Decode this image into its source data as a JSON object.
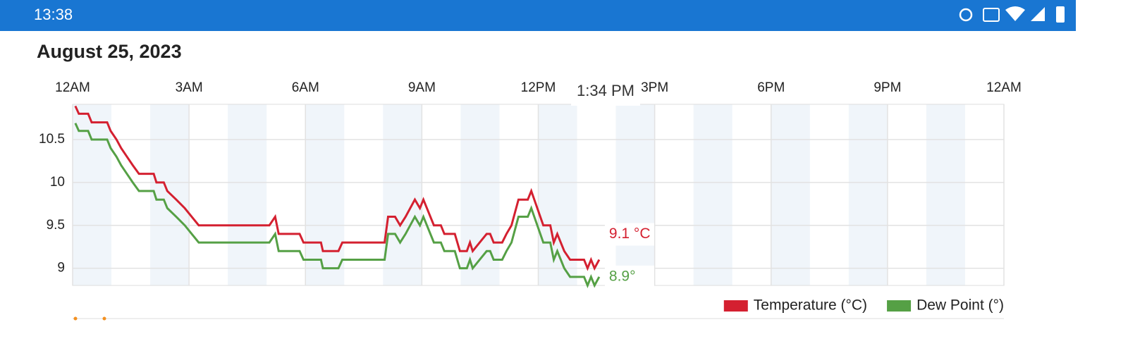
{
  "status_bar": {
    "time": "13:38"
  },
  "chart_data": {
    "type": "line",
    "title": "August 25, 2023",
    "annotation": "1:34 PM",
    "x": [
      0.07,
      0.16,
      0.4,
      0.49,
      0.89,
      0.98,
      1.13,
      1.25,
      1.4,
      1.55,
      1.71,
      2.09,
      2.16,
      2.35,
      2.44,
      2.67,
      2.89,
      3.07,
      3.25,
      5.07,
      5.22,
      5.31,
      5.85,
      5.95,
      6.4,
      6.45,
      6.85,
      6.95,
      8.04,
      8.13,
      8.31,
      8.44,
      8.58,
      8.82,
      8.95,
      9.04,
      9.31,
      9.49,
      9.58,
      9.85,
      9.98,
      10.16,
      10.24,
      10.31,
      10.49,
      10.67,
      10.76,
      10.85,
      11.07,
      11.18,
      11.31,
      11.49,
      11.73,
      11.82,
      12.13,
      12.31,
      12.4,
      12.49,
      12.67,
      12.82,
      13.18,
      13.27,
      13.36,
      13.45,
      13.57
    ],
    "series": [
      {
        "name": "Temperature (°C)",
        "color": "#d42030",
        "last_label": "9.1 °C",
        "values": [
          10.89,
          10.8,
          10.8,
          10.7,
          10.7,
          10.6,
          10.5,
          10.4,
          10.3,
          10.2,
          10.1,
          10.1,
          10.0,
          10.0,
          9.9,
          9.8,
          9.7,
          9.6,
          9.5,
          9.5,
          9.6,
          9.4,
          9.4,
          9.3,
          9.3,
          9.2,
          9.2,
          9.3,
          9.3,
          9.6,
          9.6,
          9.5,
          9.6,
          9.8,
          9.7,
          9.8,
          9.5,
          9.5,
          9.4,
          9.4,
          9.2,
          9.2,
          9.3,
          9.2,
          9.3,
          9.4,
          9.4,
          9.3,
          9.3,
          9.4,
          9.5,
          9.8,
          9.8,
          9.9,
          9.5,
          9.5,
          9.3,
          9.4,
          9.2,
          9.1,
          9.1,
          9.0,
          9.1,
          9.0,
          9.1
        ]
      },
      {
        "name": "Dew Point (°)",
        "color": "#55a045",
        "last_label": "8.9°",
        "values": [
          10.69,
          10.6,
          10.6,
          10.5,
          10.5,
          10.4,
          10.3,
          10.2,
          10.1,
          10.0,
          9.9,
          9.9,
          9.8,
          9.8,
          9.7,
          9.6,
          9.5,
          9.4,
          9.3,
          9.3,
          9.4,
          9.2,
          9.2,
          9.1,
          9.1,
          9.0,
          9.0,
          9.1,
          9.1,
          9.4,
          9.4,
          9.3,
          9.4,
          9.6,
          9.5,
          9.6,
          9.3,
          9.3,
          9.2,
          9.2,
          9.0,
          9.0,
          9.1,
          9.0,
          9.1,
          9.2,
          9.2,
          9.1,
          9.1,
          9.2,
          9.3,
          9.6,
          9.6,
          9.7,
          9.3,
          9.3,
          9.1,
          9.2,
          9.0,
          8.9,
          8.9,
          8.8,
          8.9,
          8.8,
          8.9
        ]
      }
    ],
    "xlim": [
      0,
      24
    ],
    "xticks": [
      {
        "value": 0,
        "label": "12AM"
      },
      {
        "value": 3,
        "label": "3AM"
      },
      {
        "value": 6,
        "label": "6AM"
      },
      {
        "value": 9,
        "label": "9AM"
      },
      {
        "value": 12,
        "label": "12PM"
      },
      {
        "value": 15,
        "label": "3PM"
      },
      {
        "value": 18,
        "label": "6PM"
      },
      {
        "value": 21,
        "label": "9PM"
      },
      {
        "value": 24,
        "label": "12AM"
      }
    ],
    "ylim": [
      8.8,
      10.91
    ],
    "yticks": [
      9,
      9.5,
      10,
      10.5
    ],
    "grid": true,
    "legend": "bottom-right"
  }
}
